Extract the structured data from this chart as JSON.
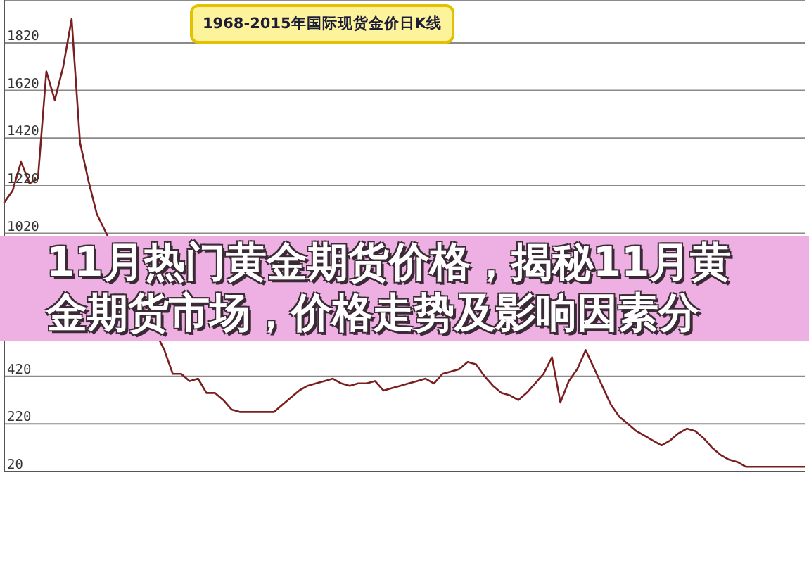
{
  "chart_data": {
    "type": "line",
    "title": "11月热门黄金期货价格，揭秘11月黄金期货市场，价格走势及影响因素分",
    "subtitle": "1968-2015年国际现货金价日K线",
    "categories": [
      null,
      null,
      null,
      null,
      null,
      null,
      null,
      null,
      null,
      null,
      null,
      null,
      null,
      null,
      null,
      null,
      null,
      null,
      null,
      null,
      null,
      null,
      null,
      null,
      null,
      null,
      null,
      null,
      null,
      null,
      null,
      null,
      null,
      null,
      null,
      null,
      null,
      null,
      null,
      null,
      null,
      null,
      null,
      null,
      null,
      null,
      null,
      null,
      null,
      null,
      null,
      null,
      null,
      null,
      null,
      null,
      null,
      null,
      null,
      null,
      null,
      null,
      null,
      null,
      null,
      null,
      null,
      null,
      null,
      null,
      null,
      null,
      null,
      null,
      null,
      null,
      null,
      null,
      null,
      null,
      null,
      null,
      null,
      null,
      null,
      null,
      null,
      null,
      null,
      null,
      null,
      null,
      null,
      null,
      null,
      null
    ],
    "values": [
      1150,
      1200,
      1320,
      1230,
      1250,
      1700,
      1580,
      1720,
      1920,
      1400,
      1240,
      1100,
      null,
      null,
      null,
      null,
      null,
      null,
      null,
      530,
      430,
      430,
      400,
      410,
      350,
      350,
      320,
      280,
      270,
      270,
      270,
      270,
      270,
      300,
      330,
      360,
      380,
      390,
      400,
      410,
      390,
      380,
      390,
      390,
      400,
      360,
      370,
      380,
      390,
      400,
      410,
      390,
      430,
      440,
      450,
      480,
      470,
      420,
      380,
      350,
      340,
      320,
      350,
      390,
      430,
      500,
      310,
      400,
      450,
      530,
      null,
      null,
      300,
      250,
      220,
      190,
      170,
      150,
      130,
      150,
      180,
      200,
      190,
      160,
      120,
      90,
      70,
      60,
      40,
      40,
      40,
      40,
      40,
      40,
      40,
      40
    ],
    "color": "#7a1f1f",
    "ylim": [
      20,
      2000
    ],
    "yticks": [
      20,
      220,
      420,
      1020,
      1220,
      1420,
      1620,
      1820
    ],
    "grid": "y",
    "tick_labels": "y"
  }
}
